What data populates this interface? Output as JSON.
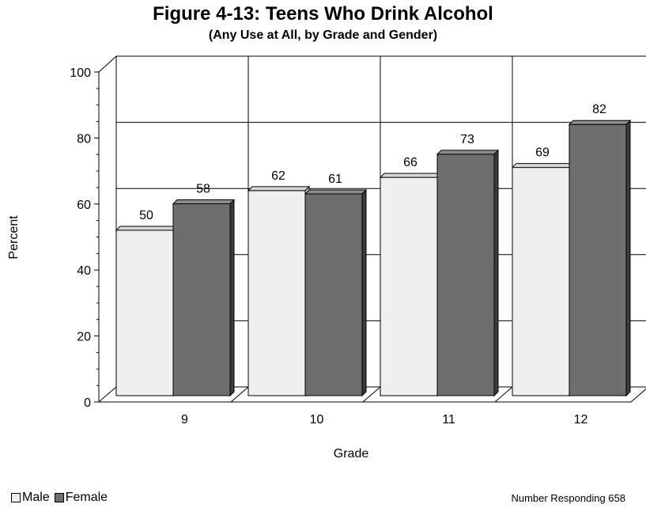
{
  "title": "Figure 4-13: Teens Who Drink Alcohol",
  "subtitle": "(Any Use at All, by Grade and Gender)",
  "footer_note": "Number Responding 658",
  "colors": {
    "male": "#efefef",
    "female": "#6e6e6e",
    "grid": "#000000"
  },
  "chart_data": {
    "type": "bar",
    "title": "Figure 4-13: Teens Who Drink Alcohol",
    "subtitle": "(Any Use at All, by Grade and Gender)",
    "xlabel": "Grade",
    "ylabel": "Percent",
    "ylim": [
      0,
      100
    ],
    "yticks": [
      0,
      20,
      40,
      60,
      80,
      100
    ],
    "categories": [
      "9",
      "10",
      "11",
      "12"
    ],
    "series": [
      {
        "name": "Male",
        "values": [
          50,
          62,
          66,
          69
        ]
      },
      {
        "name": "Female",
        "values": [
          58,
          61,
          73,
          82
        ]
      }
    ],
    "grid": true,
    "legend": "bottom-left"
  }
}
